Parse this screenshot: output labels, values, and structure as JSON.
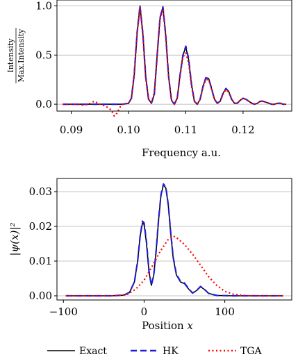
{
  "chart_data": [
    {
      "type": "line",
      "xlabel": "Frequency a.u.",
      "ylabel_numerator": "Intensity",
      "ylabel_denominator": "Max.Intensity",
      "xlim": [
        0.0875,
        0.1285
      ],
      "ylim": [
        -0.07,
        1.06
      ],
      "xticks": [
        0.09,
        0.1,
        0.11,
        0.12
      ],
      "xtick_labels": [
        "0.09",
        "0.10",
        "0.11",
        "0.12"
      ],
      "yticks": [
        0.0,
        0.5,
        1.0
      ],
      "ytick_labels": [
        "0.0",
        "0.5",
        "1.0"
      ],
      "grid": "horizontal",
      "series": [
        {
          "name": "Exact",
          "color": "#000000",
          "style": "solid",
          "x": [
            0.0885,
            0.092,
            0.094,
            0.096,
            0.098,
            0.099,
            0.1,
            0.1005,
            0.101,
            0.1015,
            0.102,
            0.1025,
            0.103,
            0.1035,
            0.104,
            0.1045,
            0.105,
            0.1055,
            0.106,
            0.1065,
            0.107,
            0.1075,
            0.108,
            0.1085,
            0.109,
            0.1095,
            0.11,
            0.1105,
            0.111,
            0.1115,
            0.112,
            0.1125,
            0.113,
            0.1135,
            0.114,
            0.1145,
            0.115,
            0.1155,
            0.116,
            0.1165,
            0.117,
            0.1175,
            0.118,
            0.1185,
            0.119,
            0.1195,
            0.12,
            0.1205,
            0.121,
            0.1215,
            0.122,
            0.1225,
            0.123,
            0.1235,
            0.124,
            0.1245,
            0.125,
            0.1255,
            0.126,
            0.1265,
            0.127,
            0.1275
          ],
          "y": [
            0,
            0,
            0,
            0,
            0,
            0,
            0.01,
            0.06,
            0.3,
            0.72,
            1.0,
            0.72,
            0.28,
            0.05,
            0.01,
            0.1,
            0.5,
            0.88,
            0.99,
            0.7,
            0.28,
            0.04,
            0.0,
            0.06,
            0.3,
            0.5,
            0.58,
            0.45,
            0.2,
            0.03,
            0.0,
            0.05,
            0.18,
            0.27,
            0.26,
            0.16,
            0.05,
            0.01,
            0.03,
            0.11,
            0.16,
            0.13,
            0.05,
            0.01,
            0.01,
            0.04,
            0.06,
            0.05,
            0.03,
            0.01,
            0.0,
            0.01,
            0.03,
            0.03,
            0.02,
            0.01,
            0.0,
            0.0,
            0.01,
            0.01,
            0.0,
            0.0
          ]
        },
        {
          "name": "HK",
          "color": "#1f1fd6",
          "style": "dashed",
          "x": [
            0.0885,
            0.092,
            0.094,
            0.096,
            0.098,
            0.099,
            0.1,
            0.1005,
            0.101,
            0.1015,
            0.102,
            0.1025,
            0.103,
            0.1035,
            0.104,
            0.1045,
            0.105,
            0.1055,
            0.106,
            0.1065,
            0.107,
            0.1075,
            0.108,
            0.1085,
            0.109,
            0.1095,
            0.11,
            0.1105,
            0.111,
            0.1115,
            0.112,
            0.1125,
            0.113,
            0.1135,
            0.114,
            0.1145,
            0.115,
            0.1155,
            0.116,
            0.1165,
            0.117,
            0.1175,
            0.118,
            0.1185,
            0.119,
            0.1195,
            0.12,
            0.1205,
            0.121,
            0.1215,
            0.122,
            0.1225,
            0.123,
            0.1235,
            0.124,
            0.1245,
            0.125,
            0.1255,
            0.126,
            0.1265,
            0.127,
            0.1275
          ],
          "y": [
            0,
            0,
            0,
            0,
            0,
            0,
            0.01,
            0.06,
            0.31,
            0.73,
            1.0,
            0.72,
            0.28,
            0.05,
            0.01,
            0.1,
            0.5,
            0.88,
            0.99,
            0.7,
            0.28,
            0.04,
            0.0,
            0.06,
            0.3,
            0.5,
            0.59,
            0.46,
            0.2,
            0.03,
            0.0,
            0.05,
            0.18,
            0.27,
            0.26,
            0.16,
            0.05,
            0.01,
            0.03,
            0.11,
            0.16,
            0.13,
            0.05,
            0.01,
            0.01,
            0.04,
            0.06,
            0.05,
            0.03,
            0.01,
            0.0,
            0.01,
            0.03,
            0.03,
            0.02,
            0.01,
            0.0,
            0.0,
            0.01,
            0.01,
            0.0,
            0.0
          ]
        },
        {
          "name": "TGA",
          "color": "#ff0000",
          "style": "dotted",
          "x": [
            0.0885,
            0.091,
            0.092,
            0.093,
            0.094,
            0.095,
            0.096,
            0.097,
            0.0975,
            0.098,
            0.0985,
            0.099,
            0.1,
            0.1005,
            0.101,
            0.1015,
            0.102,
            0.1025,
            0.103,
            0.1035,
            0.104,
            0.1045,
            0.105,
            0.1055,
            0.106,
            0.1065,
            0.107,
            0.1075,
            0.108,
            0.1085,
            0.109,
            0.1095,
            0.11,
            0.1105,
            0.111,
            0.1115,
            0.112,
            0.1125,
            0.113,
            0.1135,
            0.114,
            0.1145,
            0.115,
            0.1155,
            0.116,
            0.1165,
            0.117,
            0.1175,
            0.118,
            0.1185,
            0.119,
            0.1195,
            0.12,
            0.1205,
            0.121,
            0.1215,
            0.122,
            0.1225,
            0.123,
            0.1235,
            0.124,
            0.1245,
            0.125,
            0.1255,
            0.126,
            0.1265,
            0.127,
            0.1275
          ],
          "y": [
            0,
            0,
            -0.01,
            0.0,
            0.03,
            0.0,
            -0.02,
            -0.06,
            -0.12,
            -0.09,
            -0.03,
            0.0,
            0.01,
            0.06,
            0.3,
            0.72,
            0.98,
            0.7,
            0.26,
            0.05,
            0.02,
            0.12,
            0.5,
            0.86,
            0.97,
            0.68,
            0.27,
            0.04,
            0.0,
            0.06,
            0.29,
            0.48,
            0.52,
            0.42,
            0.18,
            0.03,
            0.0,
            0.05,
            0.17,
            0.25,
            0.25,
            0.15,
            0.05,
            0.01,
            0.03,
            0.1,
            0.15,
            0.12,
            0.05,
            0.01,
            0.01,
            0.04,
            0.06,
            0.05,
            0.03,
            0.01,
            0.0,
            0.01,
            0.03,
            0.03,
            0.02,
            0.01,
            0.0,
            0.0,
            0.01,
            0.01,
            0.0,
            0.0
          ]
        }
      ]
    },
    {
      "type": "line",
      "xlabel": "Position",
      "xlabel_var": "x",
      "ylabel": "|ψ(x)|²",
      "xlim": [
        -108,
        183
      ],
      "ylim": [
        -0.0012,
        0.0338
      ],
      "xticks": [
        -100,
        0,
        100
      ],
      "xtick_labels": [
        "−100",
        "0",
        "100"
      ],
      "yticks": [
        0.0,
        0.01,
        0.02,
        0.03
      ],
      "ytick_labels": [
        "0.00",
        "0.01",
        "0.02",
        "0.03"
      ],
      "grid": "horizontal",
      "series": [
        {
          "name": "Exact",
          "color": "#000000",
          "style": "solid",
          "x": [
            -97,
            -40,
            -25,
            -18,
            -12,
            -8,
            -5,
            -2,
            0,
            3,
            6,
            9,
            12,
            15,
            18,
            21,
            24,
            27,
            30,
            33,
            36,
            40,
            45,
            50,
            55,
            60,
            65,
            70,
            75,
            80,
            90,
            110,
            130,
            172
          ],
          "y": [
            0,
            0,
            0.0002,
            0.001,
            0.004,
            0.01,
            0.017,
            0.021,
            0.0205,
            0.015,
            0.007,
            0.003,
            0.006,
            0.013,
            0.022,
            0.029,
            0.032,
            0.031,
            0.026,
            0.018,
            0.011,
            0.006,
            0.004,
            0.0035,
            0.002,
            0.0008,
            0.0015,
            0.0026,
            0.0018,
            0.0007,
            0.0001,
            0,
            0,
            0
          ]
        },
        {
          "name": "HK",
          "color": "#1f1fd6",
          "style": "dashed",
          "x": [
            -97,
            -40,
            -25,
            -18,
            -12,
            -8,
            -5,
            -2,
            0,
            3,
            6,
            9,
            12,
            15,
            18,
            21,
            24,
            27,
            30,
            33,
            36,
            40,
            45,
            50,
            55,
            60,
            65,
            70,
            75,
            80,
            90,
            110,
            130,
            172
          ],
          "y": [
            0,
            0,
            0.0002,
            0.001,
            0.004,
            0.01,
            0.017,
            0.0215,
            0.021,
            0.0155,
            0.0072,
            0.003,
            0.006,
            0.0132,
            0.0222,
            0.0292,
            0.0322,
            0.0312,
            0.0262,
            0.0182,
            0.0112,
            0.0062,
            0.0042,
            0.0037,
            0.0021,
            0.0008,
            0.0015,
            0.0027,
            0.0018,
            0.0007,
            0.0001,
            0,
            0,
            0
          ]
        },
        {
          "name": "TGA",
          "color": "#ff0000",
          "style": "dotted",
          "x": [
            -97,
            -40,
            -30,
            -20,
            -10,
            0,
            10,
            20,
            30,
            36,
            40,
            50,
            60,
            70,
            80,
            90,
            100,
            110,
            120,
            130,
            150,
            172
          ],
          "y": [
            0,
            0,
            0.0001,
            0.0005,
            0.002,
            0.0045,
            0.0085,
            0.0128,
            0.0163,
            0.0172,
            0.0168,
            0.0148,
            0.012,
            0.0088,
            0.0055,
            0.003,
            0.0013,
            0.0005,
            0.0002,
            0,
            0,
            0
          ]
        }
      ]
    }
  ],
  "legend": {
    "placement": "bottom-center",
    "entries": [
      {
        "label": "Exact",
        "color": "#000000",
        "style": "solid"
      },
      {
        "label": "HK",
        "color": "#1f1fd6",
        "style": "dashed"
      },
      {
        "label": "TGA",
        "color": "#ff0000",
        "style": "dotted"
      }
    ]
  }
}
